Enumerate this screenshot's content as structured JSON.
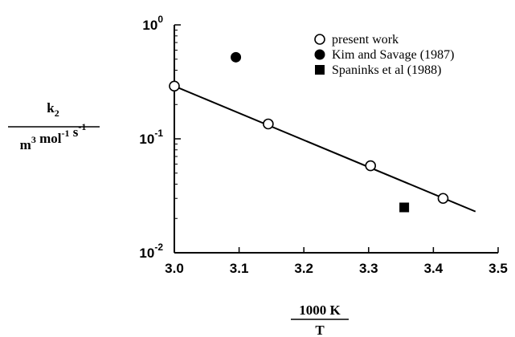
{
  "chart_data": {
    "type": "scatter",
    "x_range": [
      3.0,
      3.5
    ],
    "y_range": [
      0.01,
      1
    ],
    "y_scale": "log",
    "x_ticks": [
      3.0,
      3.1,
      3.2,
      3.3,
      3.4,
      3.5
    ],
    "x_tick_labels": [
      "3.0",
      "3.1",
      "3.2",
      "3.3",
      "3.4",
      "3.5"
    ],
    "y_ticks": [
      {
        "value": 1,
        "base": "10",
        "exp": "0"
      },
      {
        "value": 0.1,
        "base": "10",
        "exp": "-1"
      },
      {
        "value": 0.01,
        "base": "10",
        "exp": "-2"
      }
    ],
    "xlabel": {
      "numerator": "1000 K",
      "denominator": "T"
    },
    "ylabel": {
      "numerator_main": "k",
      "numerator_sub": "2",
      "denominator_parts": [
        {
          "t": "m",
          "s": "3"
        },
        {
          "t": " mol",
          "s": "-1"
        },
        {
          "t": " s",
          "s": "-1"
        }
      ]
    },
    "legend_position": "top-right",
    "series": [
      {
        "name": "present work",
        "marker": "open-circle",
        "points": [
          {
            "x": 3.0,
            "y": 0.29
          },
          {
            "x": 3.145,
            "y": 0.135
          },
          {
            "x": 3.303,
            "y": 0.058
          },
          {
            "x": 3.415,
            "y": 0.03
          }
        ]
      },
      {
        "name": "Kim and Savage (1987)",
        "marker": "filled-circle",
        "points": [
          {
            "x": 3.095,
            "y": 0.52
          }
        ]
      },
      {
        "name": "Spaninks et al (1988)",
        "marker": "filled-square",
        "points": [
          {
            "x": 3.355,
            "y": 0.025
          }
        ]
      }
    ],
    "fit_line": {
      "x": [
        3.0,
        3.465
      ],
      "y": [
        0.29,
        0.023
      ]
    }
  }
}
